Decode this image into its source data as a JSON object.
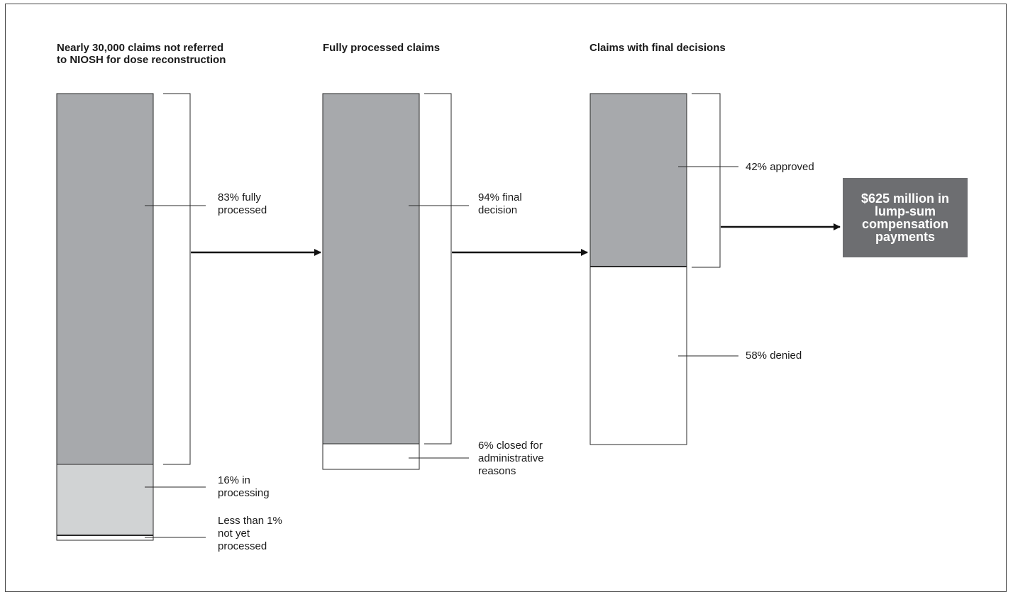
{
  "columns": [
    {
      "title": "Nearly 30,000 claims not referred to NIOSH for dose reconstruction",
      "segments": [
        {
          "label": "83% fully processed",
          "share": 83,
          "fill": "#a7a9ac"
        },
        {
          "label": "16% in processing",
          "share": 16,
          "fill": "#d1d3d4"
        },
        {
          "label": "Less than 1% not yet processed",
          "share": 1,
          "fill": "#ffffff"
        }
      ]
    },
    {
      "title": "Fully processed claims",
      "segments": [
        {
          "label": "94% final decision",
          "share": 94,
          "fill": "#a7a9ac"
        },
        {
          "label": "6% closed for administrative reasons",
          "share": 6,
          "fill": "#ffffff"
        }
      ]
    },
    {
      "title": "Claims with final decisions",
      "segments": [
        {
          "label": "42% approved",
          "share": 42,
          "fill": "#a7a9ac"
        },
        {
          "label": "58% denied",
          "share": 58,
          "fill": "#ffffff"
        }
      ]
    }
  ],
  "outcome": {
    "text": "$625 million in lump-sum compensation payments",
    "fill": "#6d6e71"
  },
  "colors": {
    "outline": "#2a2a2a",
    "arrow": "#111111"
  }
}
